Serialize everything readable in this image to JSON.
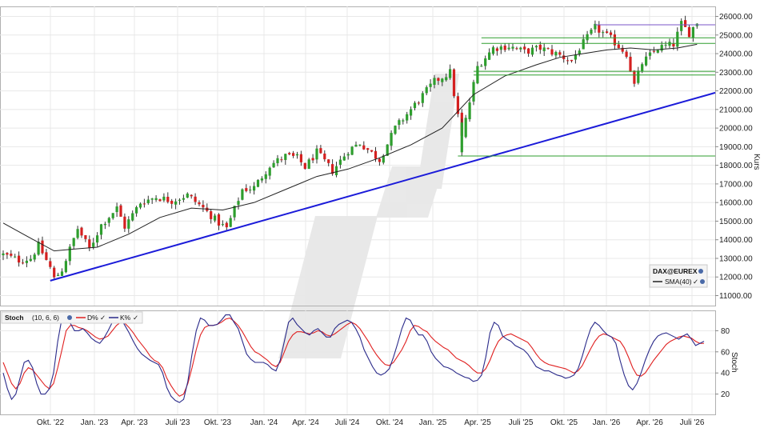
{
  "chart_data": [
    {
      "type": "candlestick",
      "ylabel": "Kurs",
      "ylim": [
        10500,
        26300
      ],
      "yticks": [
        "11000.00",
        "12000.00",
        "13000.00",
        "14000.00",
        "15000.00",
        "16000.00",
        "17000.00",
        "18000.00",
        "19000.00",
        "20000.00",
        "21000.00",
        "22000.00",
        "23000.00",
        "24000.00",
        "25000.00",
        "26000.00"
      ],
      "x_ticklabels": [
        "Okt. '22",
        "Jan. '23",
        "Apr. '23",
        "Juli '23",
        "Okt. '23",
        "Jan. '24",
        "Apr. '24",
        "Juli '24",
        "Okt. '24",
        "Jan. '25",
        "Apr. '25",
        "Juli '25",
        "Okt. '25",
        "Jan. '26",
        "Apr. '26",
        "Juli '26"
      ],
      "legend": {
        "instrument": "DAX@EUREX",
        "indicator": "SMA(40)"
      },
      "close_path": [
        [
          0,
          13200
        ],
        [
          4,
          12900
        ],
        [
          7,
          13000
        ],
        [
          9,
          13700
        ],
        [
          12,
          12500
        ],
        [
          13,
          11900
        ],
        [
          15,
          12400
        ],
        [
          19,
          14600
        ],
        [
          22,
          13500
        ],
        [
          25,
          14800
        ],
        [
          29,
          15700
        ],
        [
          31,
          14700
        ],
        [
          35,
          16000
        ],
        [
          39,
          16300
        ],
        [
          43,
          16100
        ],
        [
          47,
          16400
        ],
        [
          51,
          15700
        ],
        [
          55,
          14900
        ],
        [
          57,
          14600
        ],
        [
          61,
          16700
        ],
        [
          64,
          16800
        ],
        [
          68,
          18000
        ],
        [
          72,
          18500
        ],
        [
          75,
          18400
        ],
        [
          77,
          17900
        ],
        [
          80,
          18700
        ],
        [
          84,
          17700
        ],
        [
          88,
          18800
        ],
        [
          91,
          19200
        ],
        [
          96,
          18300
        ],
        [
          100,
          20000
        ],
        [
          104,
          21000
        ],
        [
          110,
          22500
        ],
        [
          114,
          23000
        ],
        [
          117,
          19500
        ],
        [
          121,
          23300
        ],
        [
          125,
          24300
        ],
        [
          129,
          24400
        ],
        [
          133,
          24100
        ],
        [
          137,
          24300
        ],
        [
          141,
          24000
        ],
        [
          145,
          23600
        ],
        [
          147,
          24300
        ],
        [
          151,
          25400
        ],
        [
          155,
          24800
        ],
        [
          159,
          24000
        ],
        [
          161,
          22300
        ],
        [
          163,
          23500
        ],
        [
          167,
          24300
        ],
        [
          171,
          24500
        ],
        [
          173,
          25600
        ],
        [
          175,
          25100
        ],
        [
          177,
          25700
        ]
      ],
      "candle_count": 178,
      "sma": {
        "name": "SMA(40)",
        "color": "#222222",
        "path": [
          [
            0,
            14900
          ],
          [
            6,
            14200
          ],
          [
            13,
            13400
          ],
          [
            18,
            13500
          ],
          [
            24,
            13600
          ],
          [
            32,
            14300
          ],
          [
            40,
            15200
          ],
          [
            48,
            15700
          ],
          [
            56,
            15600
          ],
          [
            64,
            16000
          ],
          [
            72,
            16700
          ],
          [
            80,
            17400
          ],
          [
            88,
            17800
          ],
          [
            96,
            18400
          ],
          [
            104,
            19100
          ],
          [
            112,
            20000
          ],
          [
            120,
            21800
          ],
          [
            128,
            22800
          ],
          [
            136,
            23400
          ],
          [
            142,
            23800
          ],
          [
            148,
            24000
          ],
          [
            154,
            24200
          ],
          [
            160,
            24300
          ],
          [
            166,
            24200
          ],
          [
            172,
            24300
          ],
          [
            177,
            24500
          ]
        ]
      },
      "trendline": {
        "color": "#1b1bd9",
        "from": [
          12,
          11800
        ],
        "to": [
          180,
          21900
        ]
      },
      "horizontal_lines": [
        {
          "level": 25550,
          "from_index": 151,
          "color": "#7a55c8"
        },
        {
          "level": 24850,
          "from_index": 122,
          "color": "#2e9e2e"
        },
        {
          "level": 24550,
          "from_index": 122,
          "color": "#2e9e2e"
        },
        {
          "level": 23050,
          "from_index": 120,
          "color": "#2e9e2e"
        },
        {
          "level": 22850,
          "from_index": 120,
          "color": "#2e9e2e"
        },
        {
          "level": 18500,
          "from_index": 116,
          "color": "#2e9e2e"
        }
      ],
      "colors": {
        "up": "#2e9e2e",
        "down": "#d42020",
        "wick": "#333333"
      }
    },
    {
      "type": "line",
      "title": "Stoch",
      "params": "(10, 6, 6)",
      "ylabel": "Stoch",
      "ylim": [
        0,
        100
      ],
      "yticks": [
        "20",
        "40",
        "60",
        "80"
      ],
      "series": [
        {
          "name": "D%",
          "color": "#e02020",
          "values": [
            50,
            40,
            30,
            25,
            30,
            40,
            45,
            43,
            38,
            33,
            28,
            25,
            30,
            45,
            62,
            80,
            85,
            85,
            83,
            82,
            80,
            77,
            74,
            72,
            73,
            75,
            80,
            85,
            88,
            87,
            83,
            78,
            72,
            67,
            62,
            56,
            52,
            50,
            45,
            35,
            28,
            22,
            18,
            20,
            30,
            45,
            62,
            76,
            83,
            85,
            85,
            86,
            88,
            91,
            92,
            89,
            85,
            79,
            72,
            65,
            60,
            58,
            55,
            52,
            48,
            46,
            50,
            60,
            70,
            76,
            79,
            79,
            78,
            77,
            78,
            80,
            79,
            76,
            75,
            77,
            80,
            83,
            86,
            88,
            86,
            82,
            76,
            70,
            63,
            57,
            52,
            48,
            47,
            50,
            56,
            62,
            70,
            80,
            85,
            84,
            81,
            79,
            74,
            70,
            67,
            64,
            62,
            58,
            54,
            52,
            50,
            47,
            43,
            40,
            40,
            44,
            52,
            62,
            70,
            74,
            76,
            77,
            75,
            73,
            71,
            69,
            64,
            58,
            53,
            50,
            48,
            47,
            46,
            45,
            44,
            42,
            40,
            42,
            47,
            55,
            63,
            70,
            75,
            77,
            76,
            74,
            72,
            70,
            64,
            55,
            45,
            38,
            37,
            40,
            46,
            52,
            57,
            62,
            67,
            70,
            72,
            74,
            75,
            74,
            73,
            70,
            68,
            68
          ]
        },
        {
          "name": "K%",
          "color": "#2a2a8a",
          "values": [
            40,
            25,
            15,
            20,
            35,
            50,
            52,
            45,
            30,
            20,
            20,
            25,
            40,
            70,
            92,
            95,
            87,
            80,
            80,
            82,
            78,
            73,
            70,
            68,
            73,
            80,
            88,
            92,
            92,
            85,
            78,
            70,
            63,
            58,
            55,
            52,
            50,
            48,
            40,
            26,
            18,
            14,
            12,
            15,
            32,
            58,
            80,
            92,
            90,
            85,
            85,
            86,
            90,
            95,
            95,
            88,
            82,
            70,
            58,
            53,
            50,
            50,
            50,
            48,
            44,
            42,
            52,
            70,
            88,
            92,
            86,
            82,
            78,
            76,
            80,
            82,
            78,
            74,
            74,
            82,
            86,
            88,
            90,
            88,
            82,
            74,
            62,
            54,
            46,
            40,
            38,
            40,
            44,
            55,
            68,
            82,
            92,
            90,
            82,
            76,
            76,
            70,
            60,
            54,
            50,
            46,
            45,
            43,
            40,
            38,
            36,
            35,
            32,
            33,
            38,
            55,
            78,
            88,
            85,
            75,
            72,
            70,
            66,
            64,
            62,
            58,
            52,
            46,
            44,
            42,
            42,
            40,
            38,
            37,
            35,
            36,
            38,
            44,
            56,
            70,
            82,
            88,
            85,
            80,
            76,
            74,
            68,
            52,
            38,
            28,
            24,
            30,
            40,
            52,
            62,
            70,
            75,
            77,
            78,
            76,
            74,
            72,
            75,
            77,
            72,
            66,
            68,
            70
          ]
        }
      ]
    }
  ]
}
